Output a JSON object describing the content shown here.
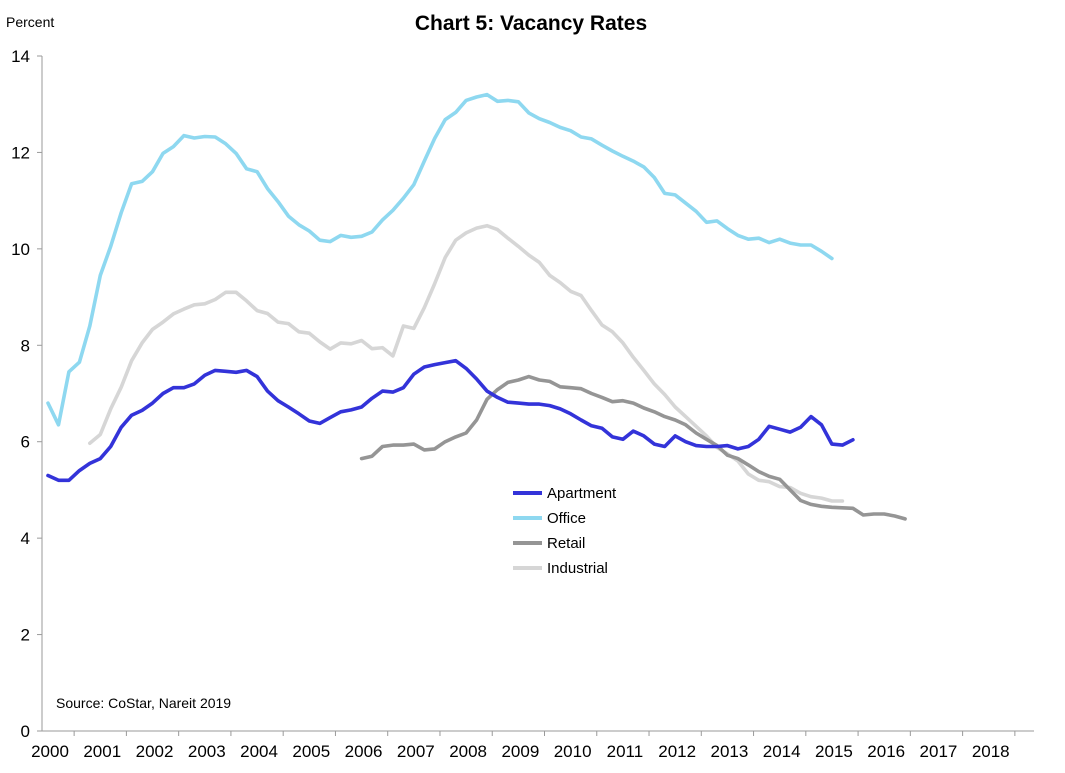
{
  "chart_data": {
    "type": "line",
    "title": "Chart 5: Vacancy Rates",
    "ylabel": "Percent",
    "ylim": [
      0,
      14
    ],
    "yticks": [
      0,
      2,
      4,
      6,
      8,
      10,
      12,
      14
    ],
    "xlim": [
      2000,
      2019
    ],
    "x_tick_labels": [
      "2000",
      "2001",
      "2002",
      "2003",
      "2004",
      "2005",
      "2006",
      "2007",
      "2008",
      "2009",
      "2010",
      "2011",
      "2012",
      "2013",
      "2014",
      "2015",
      "2016",
      "2017",
      "2018"
    ],
    "grid": false,
    "legend_position": "center",
    "source": "Source: CoStar, Nareit 2019",
    "series": [
      {
        "name": "Apartment",
        "color": "#3333d9",
        "start": 2000.0,
        "step": 0.2,
        "values": [
          5.3,
          5.2,
          5.2,
          5.4,
          5.55,
          5.65,
          5.9,
          6.3,
          6.55,
          6.65,
          6.8,
          7.0,
          7.12,
          7.12,
          7.2,
          7.38,
          7.48,
          7.46,
          7.44,
          7.48,
          7.35,
          7.05,
          6.85,
          6.72,
          6.58,
          6.43,
          6.38,
          6.5,
          6.62,
          6.66,
          6.72,
          6.9,
          7.05,
          7.03,
          7.12,
          7.4,
          7.55,
          7.6,
          7.64,
          7.68,
          7.52,
          7.3,
          7.05,
          6.92,
          6.82,
          6.8,
          6.78,
          6.78,
          6.75,
          6.68,
          6.58,
          6.45,
          6.33,
          6.28,
          6.1,
          6.05,
          6.22,
          6.12,
          5.95,
          5.9,
          6.12,
          6.0,
          5.92,
          5.9,
          5.9,
          5.92,
          5.85,
          5.9,
          6.05,
          6.32,
          6.26,
          6.2,
          6.3,
          6.52,
          6.35,
          5.95,
          5.93,
          6.04
        ]
      },
      {
        "name": "Office",
        "color": "#8ed8f0",
        "start": 2000.0,
        "step": 0.2,
        "values": [
          6.8,
          6.35,
          7.45,
          7.65,
          8.4,
          9.45,
          10.05,
          10.75,
          11.35,
          11.4,
          11.6,
          11.98,
          12.12,
          12.35,
          12.3,
          12.33,
          12.32,
          12.18,
          11.98,
          11.66,
          11.6,
          11.25,
          10.98,
          10.68,
          10.5,
          10.37,
          10.18,
          10.15,
          10.28,
          10.24,
          10.26,
          10.35,
          10.6,
          10.8,
          11.05,
          11.33,
          11.82,
          12.29,
          12.68,
          12.83,
          13.08,
          13.15,
          13.2,
          13.06,
          13.08,
          13.05,
          12.82,
          12.7,
          12.62,
          12.52,
          12.45,
          12.32,
          12.28,
          12.15,
          12.03,
          11.92,
          11.82,
          11.7,
          11.48,
          11.15,
          11.12,
          10.95,
          10.78,
          10.55,
          10.58,
          10.42,
          10.28,
          10.2,
          10.22,
          10.13,
          10.2,
          10.12,
          10.08,
          10.08,
          9.95,
          9.8
        ]
      },
      {
        "name": "Retail",
        "color": "#959595",
        "start": 2006.0,
        "step": 0.2,
        "values": [
          5.65,
          5.7,
          5.9,
          5.93,
          5.93,
          5.95,
          5.83,
          5.85,
          6.0,
          6.1,
          6.18,
          6.45,
          6.88,
          7.08,
          7.23,
          7.28,
          7.35,
          7.28,
          7.25,
          7.14,
          7.12,
          7.1,
          7.0,
          6.92,
          6.83,
          6.85,
          6.8,
          6.7,
          6.62,
          6.52,
          6.45,
          6.35,
          6.18,
          6.05,
          5.92,
          5.72,
          5.65,
          5.52,
          5.38,
          5.28,
          5.22,
          5.0,
          4.78,
          4.7,
          4.66,
          4.64,
          4.63,
          4.62,
          4.48,
          4.5,
          4.5,
          4.46,
          4.4
        ]
      },
      {
        "name": "Industrial",
        "color": "#d6d6d6",
        "start": 2000.8,
        "step": 0.2,
        "values": [
          5.97,
          6.15,
          6.68,
          7.13,
          7.68,
          8.05,
          8.33,
          8.48,
          8.65,
          8.75,
          8.84,
          8.86,
          8.95,
          9.1,
          9.1,
          8.92,
          8.72,
          8.66,
          8.48,
          8.45,
          8.28,
          8.25,
          8.07,
          7.92,
          8.05,
          8.03,
          8.1,
          7.93,
          7.95,
          7.78,
          8.4,
          8.35,
          8.78,
          9.28,
          9.82,
          10.18,
          10.33,
          10.43,
          10.48,
          10.4,
          10.22,
          10.05,
          9.87,
          9.72,
          9.45,
          9.3,
          9.12,
          9.03,
          8.72,
          8.42,
          8.28,
          8.05,
          7.75,
          7.48,
          7.2,
          6.98,
          6.72,
          6.52,
          6.32,
          6.12,
          5.88,
          5.75,
          5.6,
          5.33,
          5.2,
          5.17,
          5.07,
          5.05,
          4.93,
          4.86,
          4.83,
          4.77,
          4.77
        ]
      }
    ]
  }
}
